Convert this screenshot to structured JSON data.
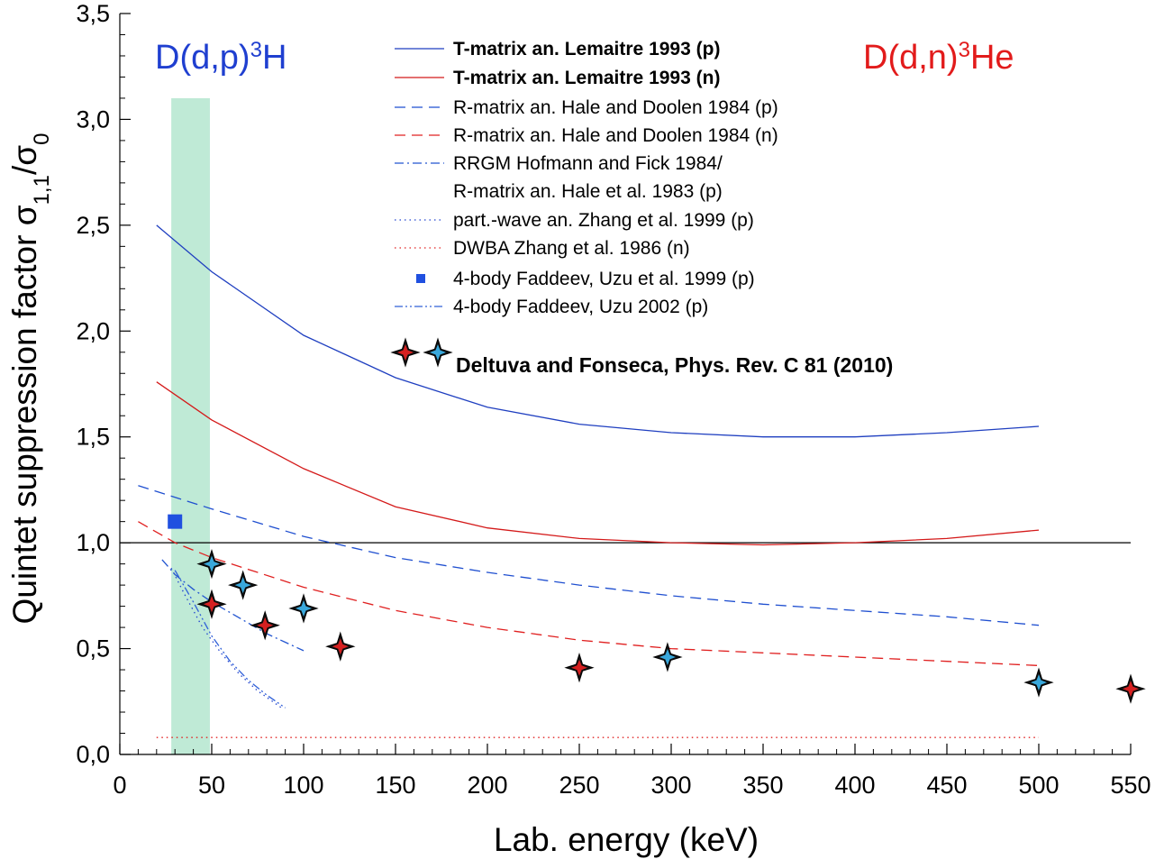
{
  "chart_data": {
    "type": "line",
    "xlabel": "Lab. energy (keV)",
    "ylabel_main": "Quintet suppression factor σ",
    "ylabel_sub1": "1,1",
    "ylabel_mid": "/σ",
    "ylabel_sub2": "0",
    "xlim": [
      0,
      550
    ],
    "ylim": [
      0,
      3.5
    ],
    "x_ticks": [
      0,
      50,
      100,
      150,
      200,
      250,
      300,
      350,
      400,
      450,
      500,
      550
    ],
    "x_tick_labels": [
      "0",
      "50",
      "100",
      "150",
      "200",
      "250",
      "300",
      "350",
      "400",
      "450",
      "500",
      "550"
    ],
    "y_ticks": [
      0,
      0.5,
      1.0,
      1.5,
      2.0,
      2.5,
      3.0,
      3.5
    ],
    "y_tick_labels": [
      "0,0",
      "0,5",
      "1,0",
      "1,5",
      "2,0",
      "2,5",
      "3,0",
      "3,5"
    ],
    "reference_line_y": 1.0,
    "shaded_band": {
      "x": [
        28,
        49
      ],
      "y": [
        0,
        3.1
      ],
      "color": "#bfead6"
    },
    "reaction_left": {
      "base": "D(d,p)",
      "sup": "3",
      "tail": "H",
      "color": "#1f3fd0"
    },
    "reaction_right": {
      "base": "D(d,n)",
      "sup": "3",
      "tail": "He",
      "color": "#e21b1b"
    },
    "series": [
      {
        "name": "T-matrix an. Lemaitre 1993 (p)",
        "color": "#1f3fc0",
        "style": "solid",
        "x": [
          20,
          50,
          100,
          150,
          200,
          250,
          300,
          350,
          400,
          450,
          500
        ],
        "y": [
          2.5,
          2.28,
          1.98,
          1.78,
          1.64,
          1.56,
          1.52,
          1.5,
          1.5,
          1.52,
          1.55
        ]
      },
      {
        "name": "T-matrix an. Lemaitre 1993 (n)",
        "color": "#d41a1a",
        "style": "solid",
        "x": [
          20,
          50,
          100,
          150,
          200,
          250,
          300,
          350,
          400,
          450,
          500
        ],
        "y": [
          1.76,
          1.58,
          1.35,
          1.17,
          1.07,
          1.02,
          1.0,
          0.99,
          1.0,
          1.02,
          1.06
        ]
      },
      {
        "name": "R-matrix an. Hale and Doolen 1984 (p)",
        "color": "#1f4fd0",
        "style": "dashed",
        "x": [
          10,
          50,
          100,
          150,
          200,
          250,
          300,
          350,
          400,
          450,
          500
        ],
        "y": [
          1.27,
          1.16,
          1.03,
          0.93,
          0.86,
          0.8,
          0.75,
          0.71,
          0.68,
          0.65,
          0.61
        ]
      },
      {
        "name": "R-matrix an. Hale and Doolen 1984 (n)",
        "color": "#e02020",
        "style": "dashed",
        "x": [
          10,
          30,
          50,
          100,
          150,
          200,
          250,
          300,
          350,
          400,
          450,
          500
        ],
        "y": [
          1.1,
          1.0,
          0.93,
          0.79,
          0.68,
          0.6,
          0.54,
          0.5,
          0.48,
          0.46,
          0.44,
          0.42
        ]
      },
      {
        "name": "RRGM Hofmann and Fick 1984/",
        "color": "#2255d0",
        "style": "dashdot",
        "x": [
          23,
          30,
          40,
          50,
          60,
          70,
          80,
          90,
          100
        ],
        "y": [
          0.92,
          0.85,
          0.78,
          0.72,
          0.67,
          0.62,
          0.57,
          0.53,
          0.49
        ]
      },
      {
        "name": "R-matrix an. Hale et al. 1983 (p)",
        "color": "#ffffff",
        "style": "none",
        "x": [],
        "y": []
      },
      {
        "name": "part.-wave an. Zhang et al. 1999 (p)",
        "color": "#2244d0",
        "style": "dotted",
        "x": [
          28,
          35,
          45,
          55,
          65,
          75,
          88
        ],
        "y": [
          0.88,
          0.76,
          0.6,
          0.48,
          0.38,
          0.3,
          0.22
        ]
      },
      {
        "name": "DWBA Zhang et al. 1986 (n)",
        "color": "#e02020",
        "style": "dotted",
        "x": [
          20,
          500
        ],
        "y": [
          0.08,
          0.08
        ]
      },
      {
        "name": "4-body Faddeev, Uzu et al. 1999 (p)",
        "color": "#2050e0",
        "style": "square",
        "x": [
          30
        ],
        "y": [
          1.1
        ]
      },
      {
        "name": "4-body Faddeev, Uzu 2002 (p)",
        "color": "#3060d8",
        "style": "dashdotdot",
        "x": [
          30,
          40,
          50,
          60,
          70,
          80,
          90
        ],
        "y": [
          0.87,
          0.72,
          0.56,
          0.44,
          0.35,
          0.28,
          0.22
        ]
      }
    ],
    "stars_label": "Deltuva and Fonseca, Phys. Rev. C 81 (2010)",
    "stars": [
      {
        "x": 50,
        "y": 0.9,
        "fill": "#39a8dc"
      },
      {
        "x": 67,
        "y": 0.8,
        "fill": "#39a8dc"
      },
      {
        "x": 50,
        "y": 0.71,
        "fill": "#d62020"
      },
      {
        "x": 100,
        "y": 0.69,
        "fill": "#39a8dc"
      },
      {
        "x": 79,
        "y": 0.61,
        "fill": "#d62020"
      },
      {
        "x": 120,
        "y": 0.51,
        "fill": "#d62020"
      },
      {
        "x": 250,
        "y": 0.41,
        "fill": "#d62020"
      },
      {
        "x": 298,
        "y": 0.46,
        "fill": "#39a8dc"
      },
      {
        "x": 500,
        "y": 0.34,
        "fill": "#39a8dc"
      },
      {
        "x": 550,
        "y": 0.31,
        "fill": "#d62020"
      }
    ]
  }
}
